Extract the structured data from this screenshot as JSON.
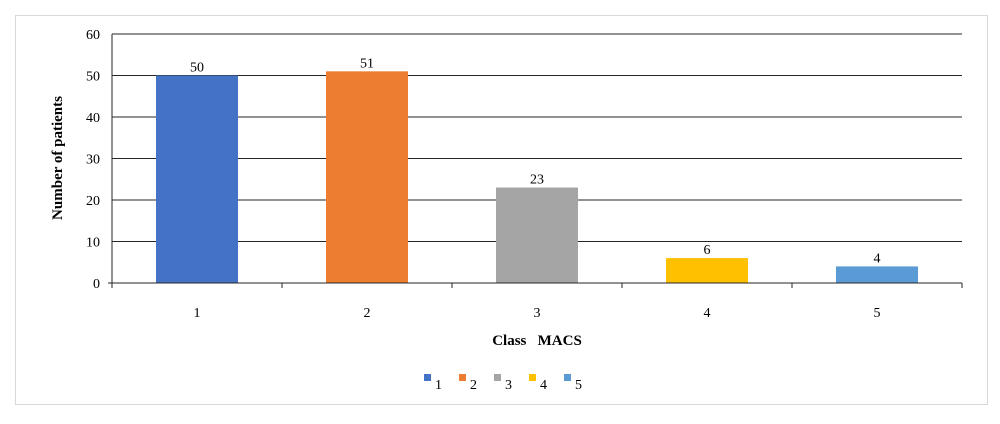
{
  "chart_data": {
    "type": "bar",
    "categories": [
      "1",
      "2",
      "3",
      "4",
      "5"
    ],
    "values": [
      50,
      51,
      23,
      6,
      4
    ],
    "data_labels": [
      "50",
      "51",
      "23",
      "6",
      "4"
    ],
    "colors": [
      "#4472c4",
      "#ed7d31",
      "#a5a5a5",
      "#ffc000",
      "#5b9bd5"
    ],
    "xlabel": "Class   MACS",
    "ylabel": "Number of patients",
    "ylim": [
      0,
      60
    ],
    "yticks": [
      0,
      10,
      20,
      30,
      40,
      50,
      60
    ],
    "grid": true,
    "legend": {
      "placement": "bottom",
      "entries": [
        "1",
        "2",
        "3",
        "4",
        "5"
      ]
    }
  }
}
